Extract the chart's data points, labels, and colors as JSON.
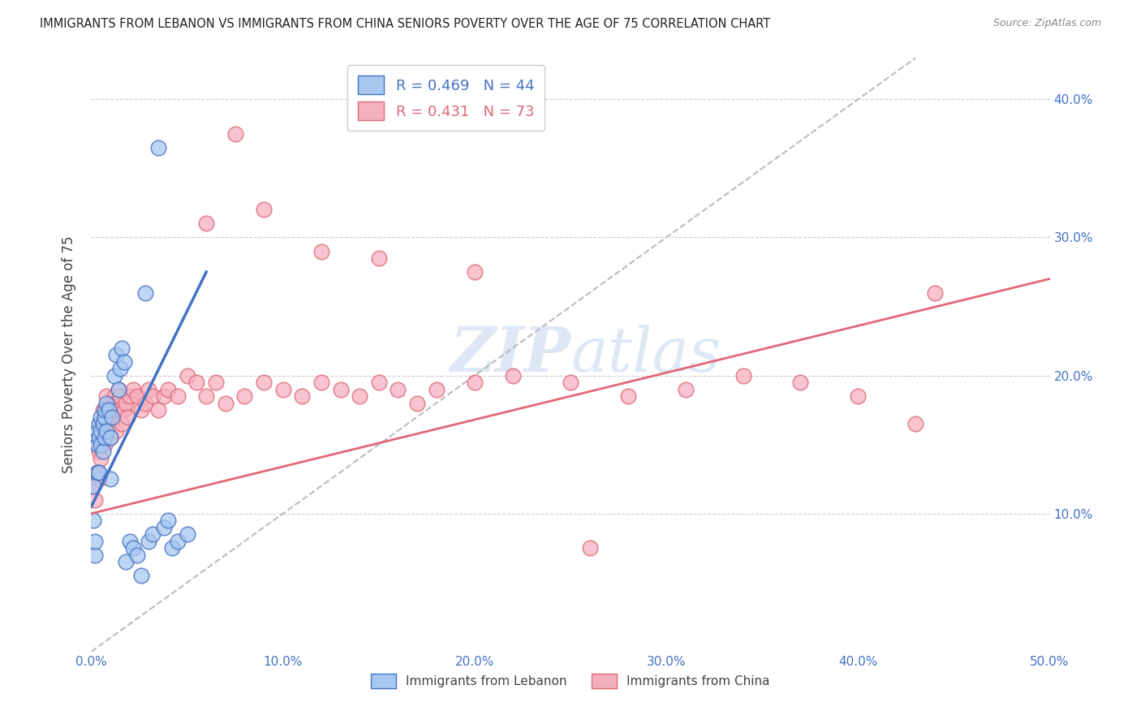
{
  "title": "IMMIGRANTS FROM LEBANON VS IMMIGRANTS FROM CHINA SENIORS POVERTY OVER THE AGE OF 75 CORRELATION CHART",
  "source": "Source: ZipAtlas.com",
  "ylabel": "Seniors Poverty Over the Age of 75",
  "xlabel_lebanon": "Immigrants from Lebanon",
  "xlabel_china": "Immigrants from China",
  "xmin": 0.0,
  "xmax": 0.5,
  "ymin": 0.0,
  "ymax": 0.43,
  "yticks": [
    0.1,
    0.2,
    0.3,
    0.4
  ],
  "xticks": [
    0.0,
    0.1,
    0.2,
    0.3,
    0.4,
    0.5
  ],
  "r_lebanon": 0.469,
  "n_lebanon": 44,
  "r_china": 0.431,
  "n_china": 73,
  "lebanon_color": "#A8C8F0",
  "china_color": "#F5B0C0",
  "lebanon_line_color": "#4472C4",
  "china_line_color": "#E06878",
  "diagonal_color": "#BBBBBB",
  "watermark": "ZIPatlas",
  "lebanon_x": [
    0.001,
    0.001,
    0.002,
    0.002,
    0.003,
    0.003,
    0.003,
    0.004,
    0.004,
    0.004,
    0.005,
    0.005,
    0.005,
    0.006,
    0.006,
    0.007,
    0.007,
    0.007,
    0.008,
    0.008,
    0.009,
    0.01,
    0.01,
    0.011,
    0.012,
    0.013,
    0.014,
    0.015,
    0.016,
    0.017,
    0.018,
    0.02,
    0.022,
    0.024,
    0.026,
    0.028,
    0.03,
    0.032,
    0.035,
    0.038,
    0.04,
    0.042,
    0.045,
    0.05
  ],
  "lebanon_y": [
    0.12,
    0.095,
    0.07,
    0.08,
    0.13,
    0.15,
    0.16,
    0.13,
    0.155,
    0.165,
    0.15,
    0.16,
    0.17,
    0.145,
    0.165,
    0.155,
    0.17,
    0.175,
    0.16,
    0.18,
    0.175,
    0.125,
    0.155,
    0.17,
    0.2,
    0.215,
    0.19,
    0.205,
    0.22,
    0.21,
    0.065,
    0.08,
    0.075,
    0.07,
    0.055,
    0.26,
    0.08,
    0.085,
    0.365,
    0.09,
    0.095,
    0.075,
    0.08,
    0.085
  ],
  "lebanon_line_x": [
    0.0,
    0.06
  ],
  "lebanon_line_y": [
    0.105,
    0.275
  ],
  "china_line_x": [
    0.0,
    0.5
  ],
  "china_line_y": [
    0.1,
    0.27
  ],
  "china_x": [
    0.001,
    0.002,
    0.003,
    0.003,
    0.004,
    0.004,
    0.005,
    0.005,
    0.006,
    0.006,
    0.007,
    0.007,
    0.008,
    0.008,
    0.009,
    0.01,
    0.01,
    0.011,
    0.012,
    0.012,
    0.013,
    0.013,
    0.014,
    0.015,
    0.015,
    0.016,
    0.017,
    0.018,
    0.019,
    0.02,
    0.022,
    0.024,
    0.026,
    0.028,
    0.03,
    0.032,
    0.035,
    0.038,
    0.04,
    0.045,
    0.05,
    0.055,
    0.06,
    0.065,
    0.07,
    0.08,
    0.09,
    0.1,
    0.11,
    0.12,
    0.13,
    0.14,
    0.15,
    0.16,
    0.17,
    0.18,
    0.2,
    0.22,
    0.25,
    0.28,
    0.31,
    0.34,
    0.37,
    0.4,
    0.43,
    0.44,
    0.06,
    0.075,
    0.09,
    0.12,
    0.15,
    0.2,
    0.26
  ],
  "china_y": [
    0.12,
    0.11,
    0.13,
    0.15,
    0.125,
    0.145,
    0.14,
    0.165,
    0.155,
    0.175,
    0.15,
    0.165,
    0.175,
    0.185,
    0.17,
    0.155,
    0.18,
    0.165,
    0.175,
    0.185,
    0.16,
    0.18,
    0.19,
    0.175,
    0.185,
    0.165,
    0.175,
    0.18,
    0.17,
    0.185,
    0.19,
    0.185,
    0.175,
    0.18,
    0.19,
    0.185,
    0.175,
    0.185,
    0.19,
    0.185,
    0.2,
    0.195,
    0.185,
    0.195,
    0.18,
    0.185,
    0.195,
    0.19,
    0.185,
    0.195,
    0.19,
    0.185,
    0.195,
    0.19,
    0.18,
    0.19,
    0.195,
    0.2,
    0.195,
    0.185,
    0.19,
    0.2,
    0.195,
    0.185,
    0.165,
    0.26,
    0.31,
    0.375,
    0.32,
    0.29,
    0.285,
    0.275,
    0.075
  ]
}
